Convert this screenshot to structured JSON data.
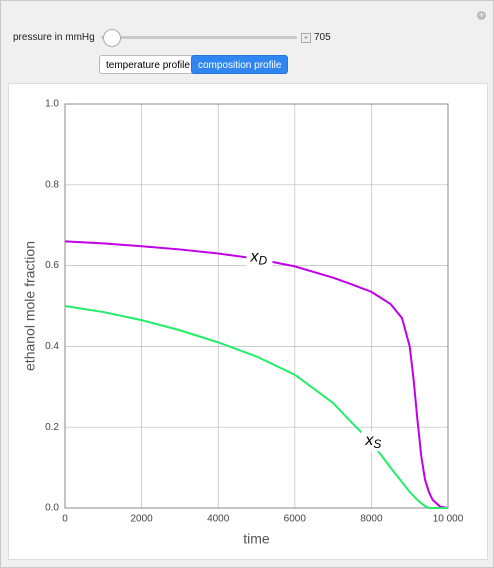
{
  "controls": {
    "slider_label": "pressure in mmHg",
    "slider_value": 705,
    "buttons": [
      "temperature profile",
      "composition profile"
    ],
    "active_button": 1
  },
  "chart_data": {
    "type": "line",
    "xlabel": "time",
    "ylabel": "ethanol mole fraction",
    "xlim": [
      0,
      10000
    ],
    "ylim": [
      0,
      1
    ],
    "xticks": [
      0,
      2000,
      4000,
      6000,
      8000,
      {
        "value": 10000,
        "label": "10 000"
      }
    ],
    "yticks": [
      {
        "value": 0,
        "label": "0.0"
      },
      {
        "value": 0.2,
        "label": "0.2"
      },
      {
        "value": 0.4,
        "label": "0.4"
      },
      {
        "value": 0.6,
        "label": "0.6"
      },
      {
        "value": 0.8,
        "label": "0.8"
      },
      {
        "value": 1,
        "label": "1.0"
      }
    ],
    "grid": true,
    "x": [
      0,
      1000,
      2000,
      3000,
      4000,
      5000,
      6000,
      7000,
      7500,
      8000,
      8500,
      8800,
      9000,
      9100,
      9200,
      9300,
      9400,
      9500,
      9600,
      9800,
      10000
    ],
    "series": [
      {
        "name": "x",
        "subscript": "D",
        "color": "#c000e8",
        "values": [
          0.66,
          0.655,
          0.648,
          0.64,
          0.63,
          0.617,
          0.598,
          0.57,
          0.553,
          0.535,
          0.505,
          0.47,
          0.4,
          0.32,
          0.22,
          0.13,
          0.07,
          0.04,
          0.02,
          0.003,
          0
        ]
      },
      {
        "name": "x",
        "subscript": "S",
        "color": "#22ee6a",
        "values": [
          0.5,
          0.485,
          0.465,
          0.44,
          0.41,
          0.375,
          0.33,
          0.26,
          0.21,
          0.163,
          0.1,
          0.064,
          0.04,
          0.03,
          0.02,
          0.012,
          0.005,
          0,
          0,
          0,
          0
        ]
      }
    ]
  }
}
